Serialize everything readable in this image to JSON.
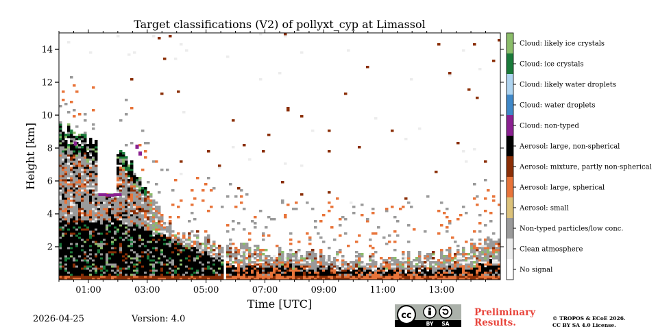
{
  "chart_data": {
    "type": "heatmap",
    "title": "Target classifications (V2) of pollyxt_cyp at Limassol",
    "xlabel": "Time [UTC]",
    "ylabel": "Height [km]",
    "xlim": [
      0,
      15
    ],
    "ylim": [
      0,
      15
    ],
    "x_ticks": [
      {
        "value": 1,
        "label": "01:00"
      },
      {
        "value": 3,
        "label": "03:00"
      },
      {
        "value": 5,
        "label": "05:00"
      },
      {
        "value": 7,
        "label": "07:00"
      },
      {
        "value": 9,
        "label": "09:00"
      },
      {
        "value": 11,
        "label": "11:00"
      },
      {
        "value": 13,
        "label": "13:00"
      }
    ],
    "y_ticks": [
      {
        "value": 2,
        "label": "2"
      },
      {
        "value": 4,
        "label": "4"
      },
      {
        "value": 6,
        "label": "6"
      },
      {
        "value": 8,
        "label": "8"
      },
      {
        "value": 10,
        "label": "10"
      },
      {
        "value": 12,
        "label": "12"
      },
      {
        "value": 14,
        "label": "14"
      }
    ],
    "legend": [
      {
        "label": "Cloud: likely ice crystals",
        "color": "#8bbd6a"
      },
      {
        "label": "Cloud: ice crystals",
        "color": "#1a7a3a"
      },
      {
        "label": "Cloud: likely water droplets",
        "color": "#aed4f0"
      },
      {
        "label": "Cloud: water droplets",
        "color": "#3f88c8"
      },
      {
        "label": "Cloud: non-typed",
        "color": "#8a2090"
      },
      {
        "label": "Aerosol: large, non-spherical",
        "color": "#000000"
      },
      {
        "label": "Aerosol: mixture, partly non-spherical",
        "color": "#8a2e06"
      },
      {
        "label": "Aerosol: large, spherical",
        "color": "#e8743a"
      },
      {
        "label": "Aerosol: small",
        "color": "#dcc27a"
      },
      {
        "label": "Non-typed particles/low conc.",
        "color": "#9a9a9a"
      },
      {
        "label": "Clean atmosphere",
        "color": "#ececec"
      },
      {
        "label": "No signal",
        "color": "#ffffff"
      }
    ],
    "data_gaps": [
      {
        "x_start": 1.34,
        "x_end": 1.98,
        "y_min": 5.2,
        "y_max": 15
      },
      {
        "x_start": 5.6,
        "x_end": 5.7,
        "y_min": 0,
        "y_max": 15
      }
    ]
  },
  "footer": {
    "date": "2026-04-25",
    "version": "Version: 4.0",
    "preliminary_line1": "Preliminary",
    "preliminary_line2": "Results.",
    "copyright_line1": "© TROPOS & ECoE 2026.",
    "copyright_line2": "CC BY SA 4.0 License.",
    "cc_badge": {
      "cc": "cc",
      "by": "BY",
      "sa": "SA"
    }
  }
}
